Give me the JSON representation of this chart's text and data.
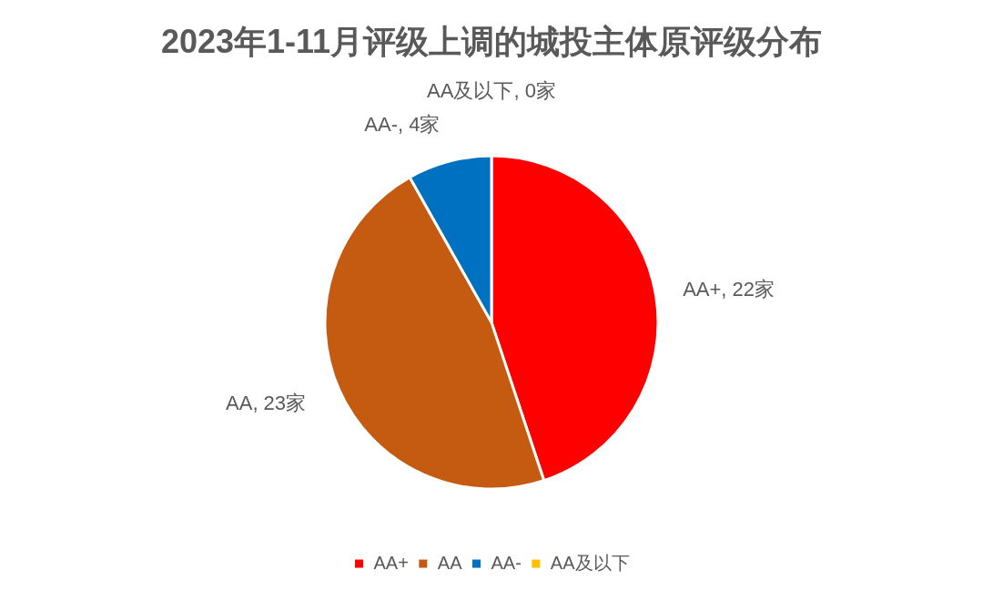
{
  "chart_data": {
    "type": "pie",
    "title": "2023年1-11月评级上调的城投主体原评级分布",
    "categories": [
      "AA+",
      "AA",
      "AA-",
      "AA及以下"
    ],
    "values": [
      22,
      23,
      4,
      0
    ],
    "colors": [
      "#ff0000",
      "#c55a11",
      "#0070c0",
      "#ffc000"
    ],
    "value_labels": [
      "AA+, 22家",
      "AA, 23家",
      "AA-, 4家",
      "AA及以下, 0家"
    ],
    "legend": "bottom"
  }
}
